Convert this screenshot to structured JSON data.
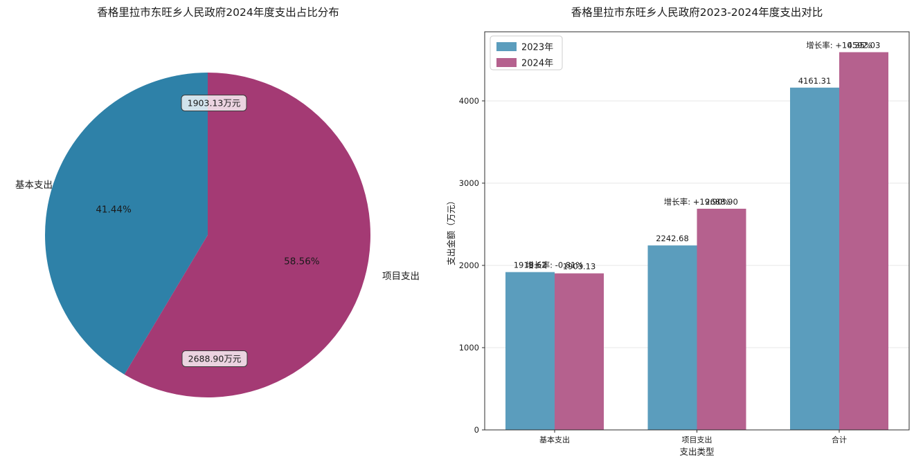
{
  "chart_data": [
    {
      "type": "pie",
      "title": "香格里拉市东旺乡人民政府2024年度支出占比分布",
      "labels": [
        "基本支出",
        "项目支出"
      ],
      "values": [
        1903.13,
        2688.9
      ],
      "percent_labels": [
        "41.44%",
        "58.56%"
      ],
      "amount_labels": [
        "1903.13万元",
        "2688.90万元"
      ],
      "colors": [
        "#2e81a8",
        "#a43a74"
      ],
      "start_angle_deg": 90,
      "direction": "counterclockwise",
      "percent_text_color": "#ffffff",
      "label_text_color": "#000000"
    },
    {
      "type": "bar",
      "title": "香格里拉市东旺乡人民政府2023-2024年度支出对比",
      "xlabel": "支出类型",
      "ylabel": "支出金额（万元）",
      "categories": [
        "基本支出",
        "项目支出",
        "合计"
      ],
      "series": [
        {
          "name": "2023年",
          "color": "#5b9dbd",
          "values": [
            1918.62,
            2242.68,
            4161.31
          ],
          "value_labels": [
            "1918.62",
            "2242.68",
            "4161.31"
          ]
        },
        {
          "name": "2024年",
          "color": "#b5618e",
          "values": [
            1903.13,
            2688.9,
            4592.03
          ],
          "value_labels": [
            "1903.13",
            "2688.90",
            "4592.03"
          ]
        }
      ],
      "growth_annotations": [
        {
          "text": "增长率: -0.81%",
          "color": "#dd2222"
        },
        {
          "text": "增长率: +19.90%",
          "color": "#1e8a1e"
        },
        {
          "text": "增长率: +10.35%",
          "color": "#1e8a1e"
        }
      ],
      "yticks": [
        "0",
        "1000",
        "2000",
        "3000",
        "4000"
      ],
      "ytick_values": [
        0,
        1000,
        2000,
        3000,
        4000
      ],
      "ylim": [
        0,
        4840
      ],
      "grid": true,
      "legend": {
        "position": "upper left",
        "entries": [
          "2023年",
          "2024年"
        ]
      },
      "value_label_color": "#000000"
    }
  ]
}
